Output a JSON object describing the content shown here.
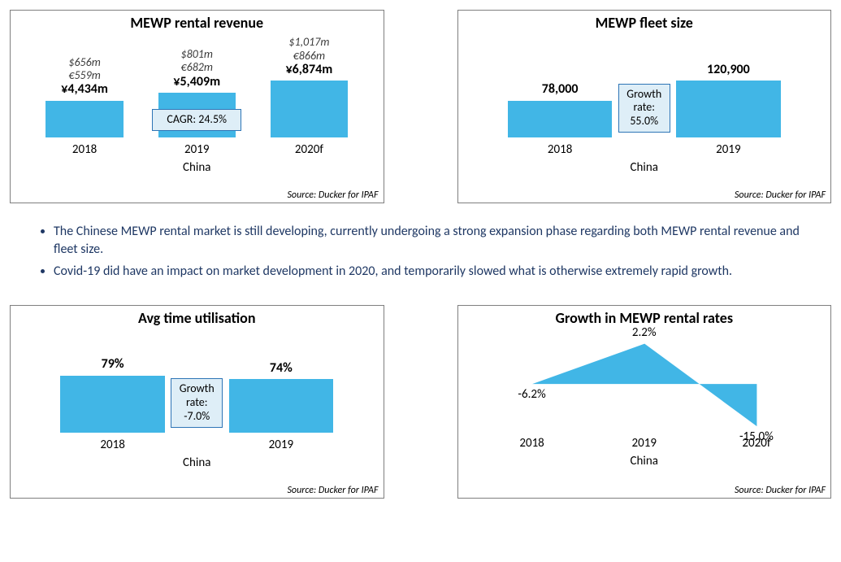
{
  "colors": {
    "bar_fill": "#41b6e6",
    "card_border": "#7f7f7f",
    "callout_fill": "#deeef7",
    "callout_border": "#2e75b6",
    "text": "#000000",
    "bullet_text": "#1f3864",
    "line_stroke": "#41b6e6",
    "background": "#ffffff"
  },
  "source_text": "Source: Ducker for IPAF",
  "region": "China",
  "revenue": {
    "title": "MEWP rental revenue",
    "categories": [
      "2018",
      "2019",
      "2020f"
    ],
    "yen_values_m": [
      4434,
      5409,
      6874
    ],
    "usd_labels": [
      "$656m",
      "$801m",
      "$1,017m"
    ],
    "eur_labels": [
      "€559m",
      "€682m",
      "€866m"
    ],
    "yen_labels": [
      "¥4,434m",
      "¥5,409m",
      "¥6,874m"
    ],
    "bar_width_pct": 23,
    "callout": "CAGR: 24.5%"
  },
  "fleet": {
    "title": "MEWP fleet size",
    "categories": [
      "2018",
      "2019"
    ],
    "values": [
      78000,
      120900
    ],
    "value_labels": [
      "78,000",
      "120,900"
    ],
    "bar_width_pct": 31,
    "callout_line1": "Growth",
    "callout_line2": "rate:",
    "callout_line3": "55.0%"
  },
  "util": {
    "title": "Avg time utilisation",
    "categories": [
      "2018",
      "2019"
    ],
    "values_pct": [
      79,
      74
    ],
    "value_labels": [
      "79%",
      "74%"
    ],
    "bar_width_pct": 31,
    "callout_line1": "Growth",
    "callout_line2": "rate:",
    "callout_line3": "-7.0%"
  },
  "rates": {
    "title": "Growth in MEWP rental rates",
    "categories": [
      "2018",
      "2019",
      "2020f"
    ],
    "values_pct": [
      -6.2,
      2.2,
      -15.0
    ],
    "value_labels": [
      "-6.2%",
      "2.2%",
      "-15.0%"
    ],
    "line_width": 3,
    "y_domain": [
      -16,
      4
    ]
  },
  "bullets": [
    "The Chinese MEWP rental market is still developing, currently undergoing a strong expansion phase regarding both MEWP rental revenue and fleet size.",
    "Covid-19 did have an impact on market development in 2020, and temporarily slowed what is otherwise extremely rapid growth."
  ]
}
